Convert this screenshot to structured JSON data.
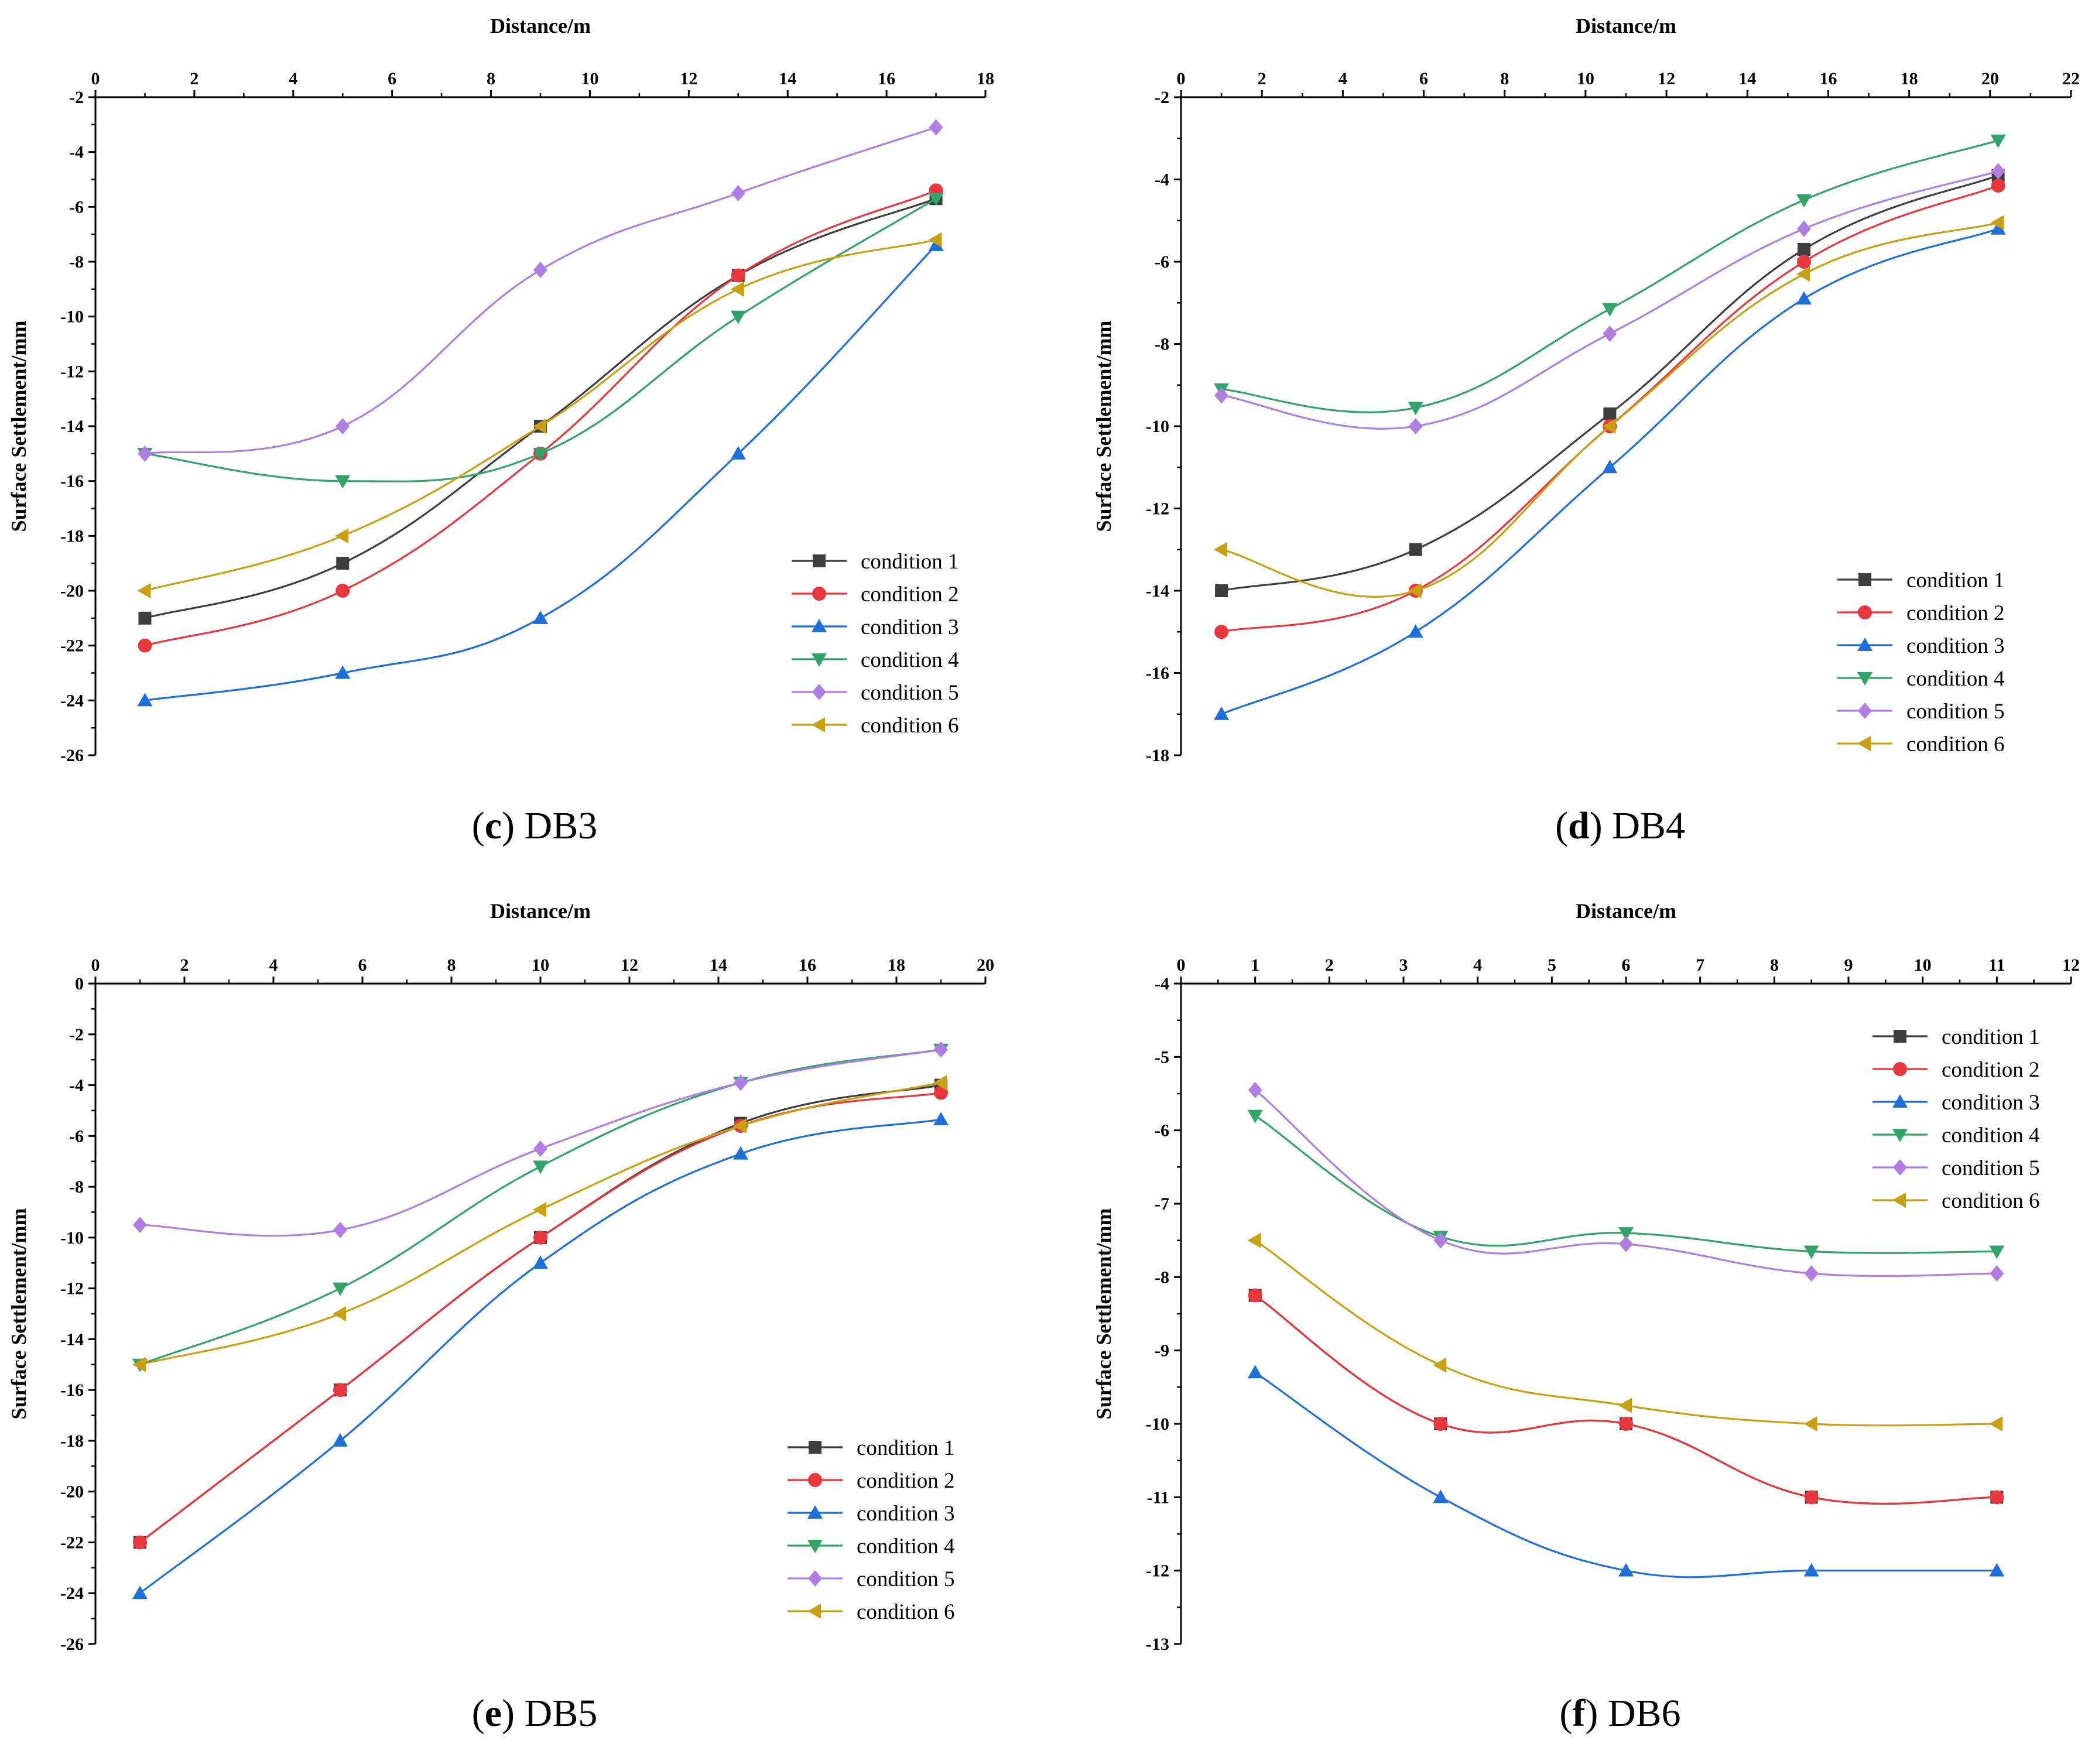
{
  "figure": {
    "panels": [
      {
        "id": "c",
        "caption": {
          "letter": "c",
          "name": "DB3"
        },
        "chart_data": {
          "type": "line",
          "title": "(c) DB3",
          "xlabel": "Distance/m",
          "ylabel": "Surface Settlement/mm",
          "xlim": [
            0,
            18
          ],
          "ylim": [
            -26,
            -2
          ],
          "xticks": [
            0,
            2,
            4,
            6,
            8,
            10,
            12,
            14,
            16,
            18
          ],
          "yticks": [
            -2,
            -4,
            -6,
            -8,
            -10,
            -12,
            -14,
            -16,
            -18,
            -20,
            -22,
            -24,
            -26
          ],
          "legend_position": "lower-right",
          "x": [
            1,
            5,
            9,
            13,
            17
          ],
          "series": [
            {
              "name": "condition 1",
              "values": [
                -21,
                -19,
                -14,
                -8.5,
                -5.7
              ],
              "color": "#3d3d3d",
              "marker": "square"
            },
            {
              "name": "condition 2",
              "values": [
                -22,
                -20,
                -15,
                -8.5,
                -5.4
              ],
              "color": "#e8383d",
              "marker": "circle"
            },
            {
              "name": "condition 3",
              "values": [
                -24,
                -23,
                -21,
                -15,
                -7.4
              ],
              "color": "#1f6fd8",
              "marker": "triangle-up"
            },
            {
              "name": "condition 4",
              "values": [
                -15,
                -16,
                -15,
                -10,
                -5.7
              ],
              "color": "#33a36a",
              "marker": "triangle-down"
            },
            {
              "name": "condition 5",
              "values": [
                -15,
                -14,
                -8.3,
                -5.5,
                -3.1
              ],
              "color": "#b07ee0",
              "marker": "diamond"
            },
            {
              "name": "condition 6",
              "values": [
                -20,
                -18,
                -14,
                -9,
                -7.2
              ],
              "color": "#c8a012",
              "marker": "triangle-left"
            }
          ]
        }
      },
      {
        "id": "d",
        "caption": {
          "letter": "d",
          "name": "DB4"
        },
        "chart_data": {
          "type": "line",
          "title": "(d) DB4",
          "xlabel": "Distance/m",
          "ylabel": "Surface Settlement/mm",
          "xlim": [
            0,
            22
          ],
          "ylim": [
            -18,
            -2
          ],
          "xticks": [
            0,
            2,
            4,
            6,
            8,
            10,
            12,
            14,
            16,
            18,
            20,
            22
          ],
          "yticks": [
            -2,
            -4,
            -6,
            -8,
            -10,
            -12,
            -14,
            -16,
            -18
          ],
          "legend_position": "lower-right",
          "x": [
            1,
            5.8,
            10.6,
            15.4,
            20.2
          ],
          "series": [
            {
              "name": "condition 1",
              "values": [
                -14,
                -13,
                -9.7,
                -5.7,
                -3.9
              ],
              "color": "#3d3d3d",
              "marker": "square"
            },
            {
              "name": "condition 2",
              "values": [
                -15,
                -14,
                -10,
                -6,
                -4.15
              ],
              "color": "#e8383d",
              "marker": "circle"
            },
            {
              "name": "condition 3",
              "values": [
                -17,
                -15,
                -11,
                -6.9,
                -5.2
              ],
              "color": "#1f6fd8",
              "marker": "triangle-up"
            },
            {
              "name": "condition 4",
              "values": [
                -9.1,
                -9.55,
                -7.15,
                -4.5,
                -3.05
              ],
              "color": "#33a36a",
              "marker": "triangle-down"
            },
            {
              "name": "condition 5",
              "values": [
                -9.25,
                -10,
                -7.75,
                -5.2,
                -3.8
              ],
              "color": "#b07ee0",
              "marker": "diamond"
            },
            {
              "name": "condition 6",
              "values": [
                -13,
                -14,
                -10,
                -6.3,
                -5.05
              ],
              "color": "#c8a012",
              "marker": "triangle-left"
            }
          ]
        }
      },
      {
        "id": "e",
        "caption": {
          "letter": "e",
          "name": "DB5"
        },
        "chart_data": {
          "type": "line",
          "title": "(e) DB5",
          "xlabel": "Distance/m",
          "ylabel": "Surface Settlement/mm",
          "xlim": [
            0,
            20
          ],
          "ylim": [
            -26,
            0
          ],
          "xticks": [
            0,
            2,
            4,
            6,
            8,
            10,
            12,
            14,
            16,
            18,
            20
          ],
          "yticks": [
            0,
            -2,
            -4,
            -6,
            -8,
            -10,
            -12,
            -14,
            -16,
            -18,
            -20,
            -22,
            -24,
            -26
          ],
          "legend_position": "lower-right",
          "x": [
            1,
            5.5,
            10,
            14.5,
            19
          ],
          "series": [
            {
              "name": "condition 1",
              "values": [
                -22,
                -16,
                -10,
                -5.5,
                -4
              ],
              "color": "#3d3d3d",
              "marker": "square"
            },
            {
              "name": "condition 2",
              "values": [
                -22,
                -16,
                -10,
                -5.6,
                -4.3
              ],
              "color": "#e8383d",
              "marker": "circle"
            },
            {
              "name": "condition 3",
              "values": [
                -24,
                -18,
                -11,
                -6.7,
                -5.35
              ],
              "color": "#1f6fd8",
              "marker": "triangle-up"
            },
            {
              "name": "condition 4",
              "values": [
                -15,
                -12,
                -7.2,
                -3.9,
                -2.6
              ],
              "color": "#33a36a",
              "marker": "triangle-down"
            },
            {
              "name": "condition 5",
              "values": [
                -9.5,
                -9.7,
                -6.5,
                -3.9,
                -2.6
              ],
              "color": "#b07ee0",
              "marker": "diamond"
            },
            {
              "name": "condition 6",
              "values": [
                -15,
                -13,
                -8.9,
                -5.6,
                -3.9
              ],
              "color": "#c8a012",
              "marker": "triangle-left"
            }
          ]
        }
      },
      {
        "id": "f",
        "caption": {
          "letter": "f",
          "name": "DB6"
        },
        "chart_data": {
          "type": "line",
          "title": "(f) DB6",
          "xlabel": "Distance/m",
          "ylabel": "Surface Settlement/mm",
          "xlim": [
            0,
            12
          ],
          "ylim": [
            -13,
            -4
          ],
          "xticks": [
            0,
            1,
            2,
            3,
            4,
            5,
            6,
            7,
            8,
            9,
            10,
            11,
            12
          ],
          "yticks": [
            -4,
            -5,
            -6,
            -7,
            -8,
            -9,
            -10,
            -11,
            -12,
            -13
          ],
          "legend_position": "top-right",
          "x": [
            1,
            3.5,
            6,
            8.5,
            11
          ],
          "series": [
            {
              "name": "condition 1",
              "values": [
                -8.25,
                -10,
                -10,
                -11,
                -11
              ],
              "color": "#3d3d3d",
              "marker": "square"
            },
            {
              "name": "condition 2",
              "values": [
                -8.25,
                -10,
                -10,
                -11,
                -11
              ],
              "color": "#e8383d",
              "marker": "circle"
            },
            {
              "name": "condition 3",
              "values": [
                -9.3,
                -11,
                -12,
                -12,
                -12
              ],
              "color": "#1f6fd8",
              "marker": "triangle-up"
            },
            {
              "name": "condition 4",
              "values": [
                -5.8,
                -7.45,
                -7.4,
                -7.65,
                -7.65
              ],
              "color": "#33a36a",
              "marker": "triangle-down"
            },
            {
              "name": "condition 5",
              "values": [
                -5.45,
                -7.5,
                -7.55,
                -7.95,
                -7.95
              ],
              "color": "#b07ee0",
              "marker": "diamond"
            },
            {
              "name": "condition 6",
              "values": [
                -7.5,
                -9.2,
                -9.75,
                -10,
                -10
              ],
              "color": "#c8a012",
              "marker": "triangle-left"
            }
          ]
        }
      }
    ]
  }
}
